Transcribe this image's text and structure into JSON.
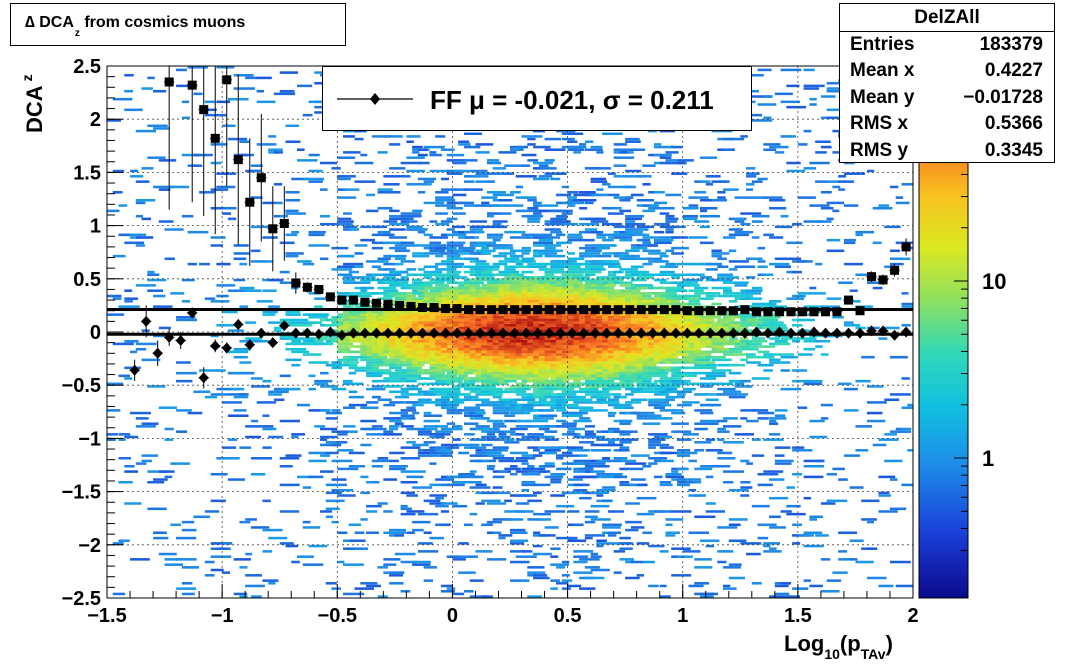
{
  "title": {
    "main": "∆ DCA",
    "sub": "z",
    "suffix": " from cosmics muons"
  },
  "stats": {
    "name": "DelZAll",
    "rows": [
      {
        "label": "Entries",
        "value": "183379"
      },
      {
        "label": "Mean x",
        "value": "0.4227"
      },
      {
        "label": "Mean y",
        "value": "−0.01728"
      },
      {
        "label": "RMS x",
        "value": "0.5366"
      },
      {
        "label": "RMS y",
        "value": "0.3345"
      }
    ]
  },
  "legend": {
    "entry": "FF μ = -0.021, σ =   0.211"
  },
  "colors": {
    "mean_marker": "#000000",
    "sigma_marker": "#000000",
    "palette": "rainbow"
  },
  "chart_data": {
    "type": "heatmap",
    "xlabel": {
      "main": "Log",
      "sub1": "10",
      "mid": "(p",
      "sub2": "TAv",
      "end": ")"
    },
    "ylabel": {
      "main": "DCA",
      "sub": "z"
    },
    "xlim": [
      -1.5,
      2
    ],
    "ylim": [
      -2.5,
      2.5
    ],
    "x_ticks": [
      -1.5,
      -1,
      -0.5,
      0,
      0.5,
      1,
      1.5,
      2
    ],
    "x_tick_labels": [
      "−1.5",
      "−1",
      "−0.5",
      "0",
      "0.5",
      "1",
      "1.5",
      "2"
    ],
    "y_ticks": [
      -2.5,
      -2,
      -1.5,
      -1,
      -0.5,
      0,
      0.5,
      1,
      1.5,
      2,
      2.5
    ],
    "y_tick_labels": [
      "−2.5",
      "−2",
      "−1.5",
      "−1",
      "−0.5",
      "0",
      "0.5",
      "1",
      "1.5",
      "2",
      "2.5"
    ],
    "grid": true,
    "colorbar": {
      "scale": "log",
      "tick_labels": [
        {
          "value": 1,
          "label": "1"
        },
        {
          "value": 10,
          "label": "10"
        }
      ]
    },
    "sigma_line": 0.211,
    "mean_line": -0.021,
    "series": [
      {
        "marker": "diamond",
        "points": [
          [
            -1.38,
            -0.36,
            0.1
          ],
          [
            -1.33,
            0.1,
            0.15
          ],
          [
            -1.28,
            -0.2,
            0.12
          ],
          [
            -1.23,
            -0.05,
            0.08
          ],
          [
            -1.18,
            -0.08,
            0.08
          ],
          [
            -1.13,
            0.18,
            0.05
          ],
          [
            -1.08,
            -0.43,
            0.1
          ],
          [
            -1.03,
            -0.13,
            0.06
          ],
          [
            -0.98,
            -0.15,
            0.05
          ],
          [
            -0.93,
            0.07,
            0.05
          ],
          [
            -0.88,
            -0.12,
            0.05
          ],
          [
            -0.83,
            -0.01,
            0.04
          ],
          [
            -0.78,
            -0.1,
            0.03
          ],
          [
            -0.73,
            0.06,
            0.03
          ],
          [
            -0.68,
            -0.01,
            0.02
          ],
          [
            -0.63,
            -0.01,
            0.02
          ],
          [
            -0.58,
            -0.02,
            0.01
          ],
          [
            -0.53,
            0.0,
            0.01
          ],
          [
            -0.48,
            -0.03,
            0.01
          ],
          [
            -0.43,
            -0.01,
            0.01
          ],
          [
            -0.38,
            -0.01,
            0.01
          ],
          [
            -0.33,
            -0.01,
            0.01
          ],
          [
            -0.28,
            -0.01,
            0.01
          ],
          [
            -0.23,
            -0.01,
            0.01
          ],
          [
            -0.18,
            -0.01,
            0.01
          ],
          [
            -0.13,
            -0.01,
            0.01
          ],
          [
            -0.08,
            -0.01,
            0.01
          ],
          [
            -0.03,
            -0.01,
            0.01
          ],
          [
            0.02,
            -0.01,
            0.01
          ],
          [
            0.07,
            -0.01,
            0.01
          ],
          [
            0.12,
            -0.01,
            0.01
          ],
          [
            0.17,
            -0.01,
            0.01
          ],
          [
            0.22,
            -0.01,
            0.01
          ],
          [
            0.27,
            -0.01,
            0.01
          ],
          [
            0.32,
            -0.01,
            0.01
          ],
          [
            0.37,
            -0.01,
            0.01
          ],
          [
            0.42,
            -0.01,
            0.01
          ],
          [
            0.47,
            -0.01,
            0.01
          ],
          [
            0.52,
            -0.01,
            0.01
          ],
          [
            0.57,
            -0.01,
            0.01
          ],
          [
            0.62,
            -0.01,
            0.01
          ],
          [
            0.67,
            -0.01,
            0.01
          ],
          [
            0.72,
            -0.01,
            0.01
          ],
          [
            0.77,
            -0.01,
            0.01
          ],
          [
            0.82,
            -0.01,
            0.01
          ],
          [
            0.87,
            -0.01,
            0.01
          ],
          [
            0.92,
            -0.01,
            0.01
          ],
          [
            0.97,
            -0.01,
            0.01
          ],
          [
            1.02,
            -0.01,
            0.01
          ],
          [
            1.07,
            -0.01,
            0.01
          ],
          [
            1.12,
            -0.01,
            0.01
          ],
          [
            1.17,
            -0.01,
            0.01
          ],
          [
            1.22,
            -0.01,
            0.01
          ],
          [
            1.27,
            -0.01,
            0.01
          ],
          [
            1.32,
            0.0,
            0.01
          ],
          [
            1.37,
            -0.01,
            0.01
          ],
          [
            1.42,
            0.0,
            0.01
          ],
          [
            1.47,
            -0.01,
            0.01
          ],
          [
            1.52,
            -0.01,
            0.01
          ],
          [
            1.57,
            0.0,
            0.01
          ],
          [
            1.62,
            -0.01,
            0.01
          ],
          [
            1.67,
            -0.01,
            0.01
          ],
          [
            1.72,
            -0.01,
            0.01
          ],
          [
            1.77,
            -0.01,
            0.01
          ],
          [
            1.82,
            0.01,
            0.02
          ],
          [
            1.87,
            0.01,
            0.02
          ],
          [
            1.92,
            -0.03,
            0.02
          ],
          [
            1.97,
            0.0,
            0.02
          ]
        ]
      },
      {
        "marker": "square",
        "points": [
          [
            -1.23,
            2.35,
            1.2
          ],
          [
            -1.13,
            2.32,
            1.1
          ],
          [
            -1.08,
            2.09,
            1.0
          ],
          [
            -1.03,
            1.82,
            0.9
          ],
          [
            -0.98,
            2.37,
            1.0
          ],
          [
            -0.93,
            1.62,
            0.8
          ],
          [
            -0.88,
            1.22,
            0.6
          ],
          [
            -0.83,
            1.45,
            0.6
          ],
          [
            -0.78,
            0.97,
            0.4
          ],
          [
            -0.73,
            1.02,
            0.35
          ],
          [
            -0.68,
            0.46,
            0.1
          ],
          [
            -0.63,
            0.42,
            0.05
          ],
          [
            -0.58,
            0.4,
            0.04
          ],
          [
            -0.53,
            0.33,
            0.03
          ],
          [
            -0.48,
            0.3,
            0.02
          ],
          [
            -0.43,
            0.3,
            0.02
          ],
          [
            -0.38,
            0.28,
            0.02
          ],
          [
            -0.33,
            0.27,
            0.01
          ],
          [
            -0.28,
            0.26,
            0.01
          ],
          [
            -0.23,
            0.25,
            0.01
          ],
          [
            -0.18,
            0.24,
            0.01
          ],
          [
            -0.13,
            0.23,
            0.01
          ],
          [
            -0.08,
            0.23,
            0.01
          ],
          [
            -0.03,
            0.22,
            0.01
          ],
          [
            0.02,
            0.22,
            0.01
          ],
          [
            0.07,
            0.21,
            0.01
          ],
          [
            0.12,
            0.21,
            0.01
          ],
          [
            0.17,
            0.21,
            0.01
          ],
          [
            0.22,
            0.21,
            0.01
          ],
          [
            0.27,
            0.21,
            0.01
          ],
          [
            0.32,
            0.21,
            0.01
          ],
          [
            0.37,
            0.21,
            0.01
          ],
          [
            0.42,
            0.21,
            0.01
          ],
          [
            0.47,
            0.21,
            0.01
          ],
          [
            0.52,
            0.21,
            0.01
          ],
          [
            0.57,
            0.21,
            0.01
          ],
          [
            0.62,
            0.21,
            0.01
          ],
          [
            0.67,
            0.21,
            0.01
          ],
          [
            0.72,
            0.21,
            0.01
          ],
          [
            0.77,
            0.21,
            0.01
          ],
          [
            0.82,
            0.21,
            0.01
          ],
          [
            0.87,
            0.21,
            0.01
          ],
          [
            0.92,
            0.21,
            0.01
          ],
          [
            0.97,
            0.21,
            0.01
          ],
          [
            1.02,
            0.2,
            0.01
          ],
          [
            1.07,
            0.2,
            0.01
          ],
          [
            1.12,
            0.2,
            0.01
          ],
          [
            1.17,
            0.2,
            0.01
          ],
          [
            1.22,
            0.2,
            0.01
          ],
          [
            1.27,
            0.21,
            0.01
          ],
          [
            1.32,
            0.19,
            0.01
          ],
          [
            1.37,
            0.19,
            0.01
          ],
          [
            1.42,
            0.19,
            0.01
          ],
          [
            1.47,
            0.19,
            0.01
          ],
          [
            1.52,
            0.19,
            0.01
          ],
          [
            1.57,
            0.19,
            0.01
          ],
          [
            1.62,
            0.19,
            0.01
          ],
          [
            1.67,
            0.19,
            0.01
          ],
          [
            1.72,
            0.3,
            0.03
          ],
          [
            1.77,
            0.2,
            0.02
          ],
          [
            1.82,
            0.52,
            0.05
          ],
          [
            1.87,
            0.49,
            0.05
          ],
          [
            1.92,
            0.58,
            0.06
          ],
          [
            1.97,
            0.8,
            0.08
          ]
        ]
      }
    ]
  }
}
